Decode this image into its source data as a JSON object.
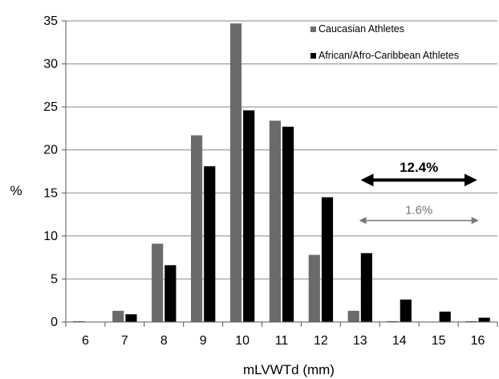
{
  "chart_data": {
    "type": "bar",
    "title": "",
    "xlabel": "mLVWTd (mm)",
    "ylabel": "%",
    "ylim": [
      0,
      35
    ],
    "yticks": [
      0,
      5,
      10,
      15,
      20,
      25,
      30,
      35
    ],
    "grid": true,
    "legend_position": "top-right",
    "categories": [
      "6",
      "7",
      "8",
      "9",
      "10",
      "11",
      "12",
      "13",
      "14",
      "15",
      "16"
    ],
    "series": [
      {
        "name": "Caucasian Athletes",
        "color": "#6b6b6b",
        "values": [
          0.1,
          1.3,
          9.1,
          21.7,
          34.7,
          23.4,
          7.8,
          1.3,
          0.1,
          0.0,
          0.1
        ]
      },
      {
        "name": "African/Afro-Caribbean Athletes",
        "color": "#000000",
        "values": [
          0.0,
          0.9,
          6.6,
          18.1,
          24.6,
          22.7,
          14.5,
          8.0,
          2.6,
          1.2,
          0.5
        ]
      }
    ],
    "annotations": [
      {
        "text": "12.4%",
        "from": "13",
        "to": "16",
        "y": 16.5,
        "color": "#000000",
        "bold": true
      },
      {
        "text": "1.6%",
        "from": "13",
        "to": "16",
        "y": 11.8,
        "color": "#777777",
        "bold": false
      }
    ]
  }
}
